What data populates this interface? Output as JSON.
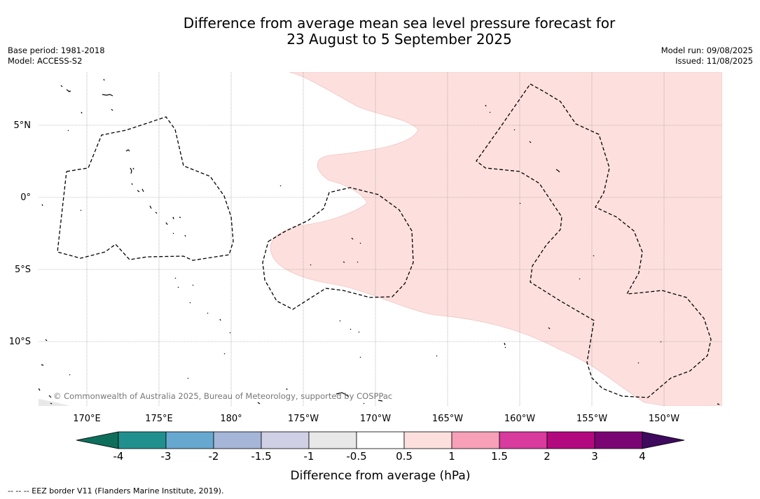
{
  "title_line1": "Difference from average mean sea level pressure forecast for",
  "title_line2": "23 August to 5 September 2025",
  "base_period": "Base period: 1981-2018",
  "model": "Model: ACCESS-S2",
  "model_run": "Model run: 09/08/2025",
  "issued": "Issued: 11/08/2025",
  "credit": "© Commonwealth of Australia 2025, Bureau of Meteorology, supported by COSPPac",
  "lat_labels": [
    "5°N",
    "0°",
    "5°S",
    "10°S"
  ],
  "lon_labels": [
    "170°E",
    "175°E",
    "180°",
    "175°W",
    "170°W",
    "165°W",
    "160°W",
    "155°W",
    "150°W"
  ],
  "colorbar": {
    "title": "Difference from average (hPa)",
    "ticks": [
      "-4",
      "-3",
      "-2",
      "-1.5",
      "-1",
      "-0.5",
      "0.5",
      "1",
      "1.5",
      "2",
      "3",
      "4"
    ],
    "colors": [
      "#0e6e5c",
      "#20908f",
      "#67a8d0",
      "#a5b6d9",
      "#cfcfe6",
      "#e8e8e8",
      "#ffffff",
      "#fde0de",
      "#f7a0b8",
      "#d93a9e",
      "#b3097f",
      "#7b0475",
      "#3f0a5e"
    ]
  },
  "footnote": "--  --  -- EEZ border V11 (Flanders Marine Institute, 2019)."
}
